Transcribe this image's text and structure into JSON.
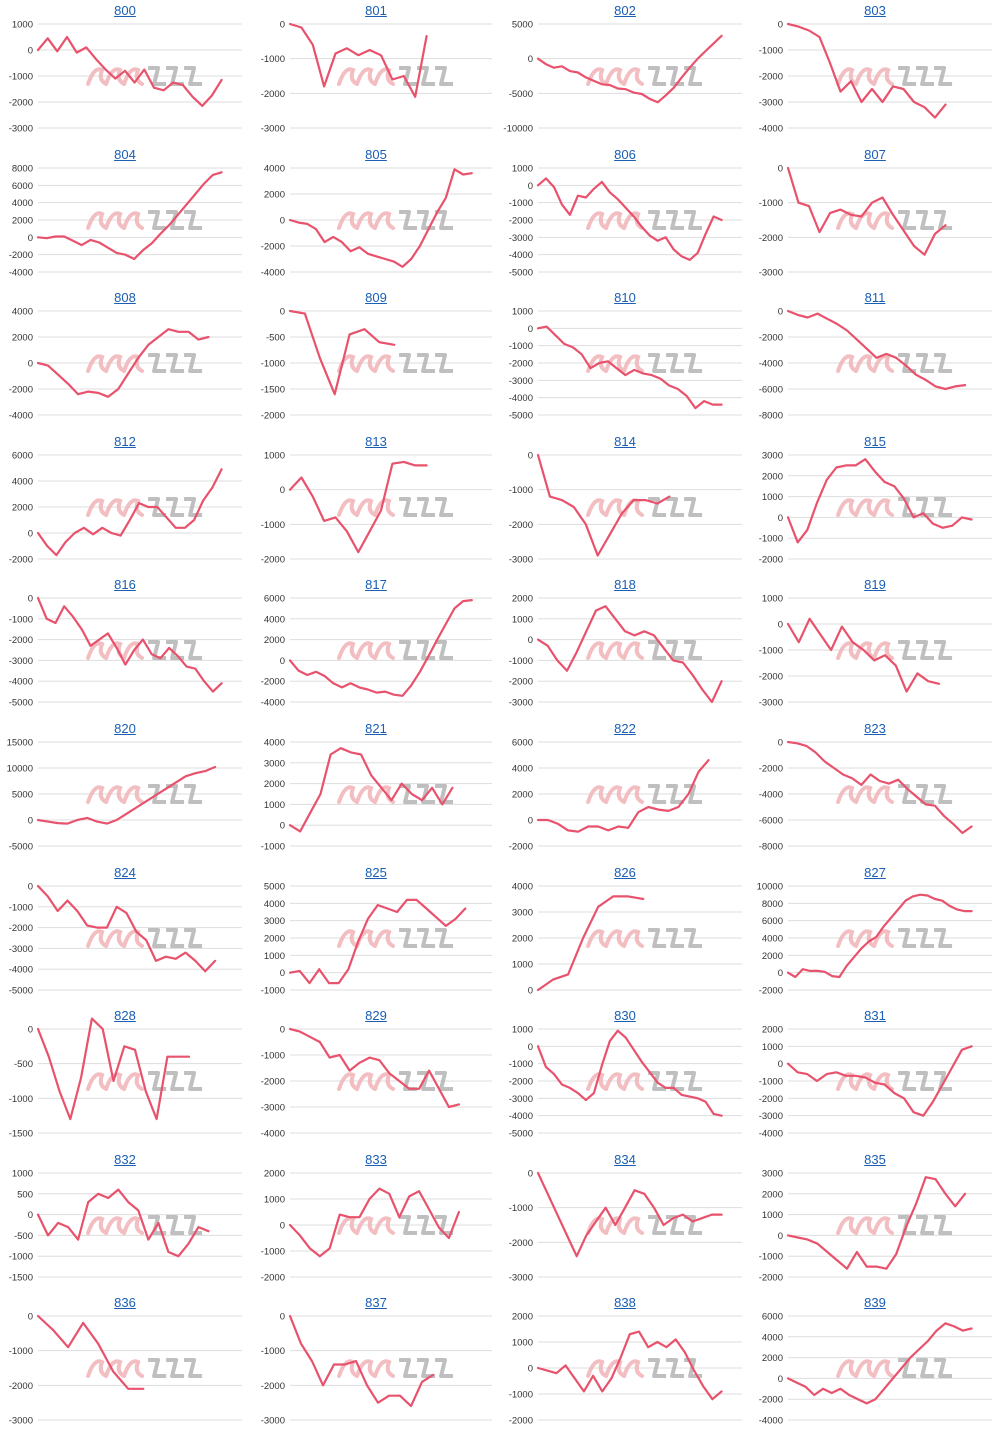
{
  "style": {
    "line_color": "#e8526c",
    "grid_color": "#dddddd",
    "title_color": "#1a5fb4",
    "watermark_pink": "#f2b3b8",
    "watermark_gray": "#b5b5b5"
  },
  "watermark": {
    "logo": "みんレポ"
  },
  "chart_data": [
    {
      "type": "line",
      "title": "800",
      "yticks": [
        1000,
        0,
        -1000,
        -2000,
        -3000
      ],
      "values": [
        0,
        450,
        -50,
        500,
        -100,
        100,
        -350,
        -750,
        -1100,
        -800,
        -1250,
        -750,
        -1450,
        -1550,
        -1250,
        -1350,
        -1800,
        -2150,
        -1750,
        -1150
      ]
    },
    {
      "type": "line",
      "title": "801",
      "yticks": [
        0,
        -1000,
        -2000,
        -3000
      ],
      "values": [
        0,
        -100,
        -600,
        -1800,
        -850,
        -700,
        -900,
        -750,
        -900,
        -1600,
        -1500,
        -2100,
        -350
      ]
    },
    {
      "type": "line",
      "title": "802",
      "yticks": [
        5000,
        0,
        -5000,
        -10000
      ],
      "values": [
        0,
        -800,
        -1300,
        -1100,
        -1800,
        -2000,
        -2700,
        -3200,
        -3700,
        -3800,
        -4300,
        -4400,
        -4900,
        -5100,
        -5800,
        -6300,
        -5300,
        -4200,
        -2700,
        -1300,
        0,
        1100,
        2200,
        3300
      ]
    },
    {
      "type": "line",
      "title": "803",
      "yticks": [
        0,
        -1000,
        -2000,
        -3000,
        -4000
      ],
      "values": [
        0,
        -100,
        -250,
        -500,
        -1500,
        -2600,
        -2200,
        -3000,
        -2500,
        -3000,
        -2400,
        -2500,
        -3000,
        -3200,
        -3600,
        -3100
      ]
    },
    {
      "type": "line",
      "title": "804",
      "yticks": [
        8000,
        6000,
        4000,
        2000,
        0,
        -2000,
        -4000
      ],
      "values": [
        0,
        -100,
        100,
        100,
        -400,
        -900,
        -300,
        -600,
        -1200,
        -1800,
        -2000,
        -2500,
        -1500,
        -700,
        400,
        1400,
        2600,
        3800,
        5000,
        6200,
        7200,
        7500
      ]
    },
    {
      "type": "line",
      "title": "805",
      "yticks": [
        4000,
        2000,
        0,
        -2000,
        -4000
      ],
      "values": [
        0,
        -200,
        -300,
        -700,
        -1700,
        -1300,
        -1700,
        -2400,
        -2100,
        -2600,
        -2800,
        -3000,
        -3200,
        -3600,
        -3000,
        -2000,
        -700,
        600,
        1700,
        3900,
        3500,
        3600
      ]
    },
    {
      "type": "line",
      "title": "806",
      "yticks": [
        1000,
        0,
        -1000,
        -2000,
        -3000,
        -4000,
        -5000
      ],
      "values": [
        0,
        400,
        -100,
        -1100,
        -1700,
        -600,
        -700,
        -200,
        200,
        -400,
        -800,
        -1300,
        -1800,
        -2400,
        -2900,
        -3200,
        -3000,
        -3700,
        -4100,
        -4300,
        -3900,
        -2800,
        -1800,
        -2000
      ]
    },
    {
      "type": "line",
      "title": "807",
      "yticks": [
        0,
        -1000,
        -2000,
        -3000
      ],
      "values": [
        0,
        -1000,
        -1100,
        -1850,
        -1300,
        -1200,
        -1350,
        -1400,
        -1000,
        -850,
        -1350,
        -1800,
        -2250,
        -2500,
        -1900,
        -1650
      ]
    },
    {
      "type": "line",
      "title": "808",
      "yticks": [
        4000,
        2000,
        0,
        -2000,
        -4000
      ],
      "values": [
        0,
        -200,
        -900,
        -1600,
        -2400,
        -2200,
        -2300,
        -2600,
        -2000,
        -800,
        400,
        1400,
        2000,
        2600,
        2400,
        2400,
        1800,
        2000
      ]
    },
    {
      "type": "line",
      "title": "809",
      "yticks": [
        0,
        -500,
        -1000,
        -1500,
        -2000
      ],
      "values": [
        0,
        -50,
        -900,
        -1600,
        -450,
        -350,
        -600,
        -650
      ]
    },
    {
      "type": "line",
      "title": "810",
      "yticks": [
        1000,
        0,
        -1000,
        -2000,
        -3000,
        -4000,
        -5000
      ],
      "values": [
        0,
        100,
        -400,
        -900,
        -1100,
        -1500,
        -2300,
        -2000,
        -1900,
        -2300,
        -2700,
        -2400,
        -2600,
        -2700,
        -2900,
        -3300,
        -3500,
        -3900,
        -4600,
        -4200,
        -4400,
        -4400
      ]
    },
    {
      "type": "line",
      "title": "811",
      "yticks": [
        0,
        -2000,
        -4000,
        -6000,
        -8000
      ],
      "values": [
        0,
        -300,
        -500,
        -200,
        -600,
        -1000,
        -1500,
        -2200,
        -2900,
        -3600,
        -3300,
        -3600,
        -4200,
        -4900,
        -5300,
        -5800,
        -6000,
        -5800,
        -5700
      ]
    },
    {
      "type": "line",
      "title": "812",
      "yticks": [
        6000,
        4000,
        2000,
        0,
        -2000
      ],
      "values": [
        0,
        -1000,
        -1700,
        -700,
        0,
        400,
        -100,
        400,
        0,
        -200,
        1000,
        2300,
        2000,
        2000,
        1200,
        400,
        400,
        1000,
        2500,
        3500,
        4900
      ]
    },
    {
      "type": "line",
      "title": "813",
      "yticks": [
        1000,
        0,
        -1000,
        -2000
      ],
      "values": [
        0,
        350,
        -200,
        -900,
        -800,
        -1200,
        -1800,
        -1200,
        -600,
        750,
        800,
        700,
        700
      ]
    },
    {
      "type": "line",
      "title": "814",
      "yticks": [
        0,
        -1000,
        -2000,
        -3000
      ],
      "values": [
        0,
        -1200,
        -1300,
        -1500,
        -2000,
        -2900,
        -2300,
        -1700,
        -1300,
        -1300,
        -1400,
        -1200
      ]
    },
    {
      "type": "line",
      "title": "815",
      "yticks": [
        3000,
        2000,
        1000,
        0,
        -1000,
        -2000
      ],
      "values": [
        0,
        -1200,
        -600,
        700,
        1800,
        2400,
        2500,
        2500,
        2800,
        2200,
        1700,
        1500,
        900,
        0,
        200,
        -300,
        -500,
        -400,
        0,
        -100
      ]
    },
    {
      "type": "line",
      "title": "816",
      "yticks": [
        0,
        -1000,
        -2000,
        -3000,
        -4000,
        -5000
      ],
      "values": [
        0,
        -1000,
        -1200,
        -400,
        -900,
        -1500,
        -2300,
        -2000,
        -1700,
        -2400,
        -3200,
        -2500,
        -2000,
        -2700,
        -2900,
        -2400,
        -2800,
        -3300,
        -3400,
        -4000,
        -4500,
        -4100
      ]
    },
    {
      "type": "line",
      "title": "817",
      "yticks": [
        6000,
        4000,
        2000,
        0,
        -2000,
        -4000
      ],
      "values": [
        0,
        -1000,
        -1400,
        -1100,
        -1500,
        -2200,
        -2600,
        -2200,
        -2600,
        -2800,
        -3100,
        -3000,
        -3300,
        -3400,
        -2400,
        -1100,
        400,
        2000,
        3500,
        5000,
        5700,
        5800
      ]
    },
    {
      "type": "line",
      "title": "818",
      "yticks": [
        2000,
        1000,
        0,
        -1000,
        -2000,
        -3000
      ],
      "values": [
        0,
        -300,
        -1000,
        -1500,
        -600,
        400,
        1400,
        1600,
        1000,
        400,
        200,
        400,
        200,
        -400,
        -1000,
        -1100,
        -1700,
        -2400,
        -3000,
        -2000
      ]
    },
    {
      "type": "line",
      "title": "819",
      "yticks": [
        1000,
        0,
        -1000,
        -2000,
        -3000
      ],
      "values": [
        0,
        -700,
        200,
        -400,
        -1000,
        -100,
        -700,
        -1000,
        -1400,
        -1200,
        -1600,
        -2600,
        -1900,
        -2200,
        -2300
      ]
    },
    {
      "type": "line",
      "title": "820",
      "yticks": [
        15000,
        10000,
        5000,
        0,
        -5000
      ],
      "values": [
        0,
        -300,
        -600,
        -700,
        0,
        400,
        -300,
        -700,
        0,
        1200,
        2400,
        3600,
        4800,
        6000,
        7200,
        8400,
        9000,
        9400,
        10200
      ]
    },
    {
      "type": "line",
      "title": "821",
      "yticks": [
        4000,
        3000,
        2000,
        1000,
        0,
        -1000
      ],
      "values": [
        0,
        -300,
        600,
        1500,
        3400,
        3700,
        3500,
        3400,
        2400,
        1800,
        1200,
        2000,
        1500,
        1200,
        1800,
        1000,
        1800
      ]
    },
    {
      "type": "line",
      "title": "822",
      "yticks": [
        6000,
        4000,
        2000,
        0,
        -2000
      ],
      "values": [
        0,
        0,
        -300,
        -800,
        -900,
        -500,
        -500,
        -800,
        -500,
        -600,
        600,
        1000,
        800,
        700,
        1000,
        2000,
        3700,
        4600
      ]
    },
    {
      "type": "line",
      "title": "823",
      "yticks": [
        0,
        -2000,
        -4000,
        -6000,
        -8000
      ],
      "values": [
        0,
        -100,
        -300,
        -800,
        -1500,
        -2000,
        -2500,
        -2800,
        -3300,
        -2500,
        -3000,
        -3200,
        -2900,
        -3600,
        -4200,
        -4800,
        -4900,
        -5700,
        -6300,
        -7000,
        -6500
      ]
    },
    {
      "type": "line",
      "title": "824",
      "yticks": [
        0,
        -1000,
        -2000,
        -3000,
        -4000,
        -5000
      ],
      "values": [
        0,
        -500,
        -1200,
        -700,
        -1200,
        -1900,
        -2000,
        -2000,
        -1000,
        -1300,
        -2200,
        -2600,
        -3600,
        -3400,
        -3500,
        -3200,
        -3600,
        -4100,
        -3600
      ]
    },
    {
      "type": "line",
      "title": "825",
      "yticks": [
        5000,
        4000,
        3000,
        2000,
        1000,
        0,
        -1000
      ],
      "values": [
        0,
        100,
        -600,
        200,
        -600,
        -600,
        200,
        1800,
        3100,
        3900,
        3700,
        3500,
        4200,
        4200,
        3700,
        3200,
        2700,
        3100,
        3700
      ]
    },
    {
      "type": "line",
      "title": "826",
      "yticks": [
        4000,
        3000,
        2000,
        1000,
        0
      ],
      "values": [
        0,
        400,
        600,
        2000,
        3200,
        3600,
        3600,
        3500
      ]
    },
    {
      "type": "line",
      "title": "827",
      "yticks": [
        10000,
        8000,
        6000,
        4000,
        2000,
        0,
        -2000
      ],
      "values": [
        0,
        -500,
        400,
        200,
        200,
        100,
        -400,
        -500,
        800,
        1800,
        2800,
        3600,
        4100,
        5300,
        6300,
        7300,
        8300,
        8800,
        9000,
        8900,
        8500,
        8300,
        7700,
        7300,
        7100,
        7100
      ]
    },
    {
      "type": "line",
      "title": "828",
      "yticks": [
        0,
        -500,
        -1000,
        -1500
      ],
      "values": [
        0,
        -400,
        -900,
        -1300,
        -700,
        150,
        0,
        -750,
        -250,
        -300,
        -900,
        -1300,
        -400,
        -400,
        -400
      ]
    },
    {
      "type": "line",
      "title": "829",
      "yticks": [
        0,
        -1000,
        -2000,
        -3000,
        -4000
      ],
      "values": [
        0,
        -100,
        -300,
        -500,
        -1100,
        -1000,
        -1600,
        -1300,
        -1100,
        -1200,
        -1700,
        -2000,
        -2300,
        -2300,
        -1600,
        -2300,
        -3000,
        -2900
      ]
    },
    {
      "type": "line",
      "title": "830",
      "yticks": [
        1000,
        0,
        -1000,
        -2000,
        -3000,
        -4000,
        -5000
      ],
      "values": [
        0,
        -1200,
        -1600,
        -2200,
        -2400,
        -2700,
        -3100,
        -2700,
        -1100,
        300,
        900,
        500,
        -200,
        -900,
        -1500,
        -2100,
        -2400,
        -2400,
        -2800,
        -2900,
        -3000,
        -3200,
        -3900,
        -4000
      ]
    },
    {
      "type": "line",
      "title": "831",
      "yticks": [
        2000,
        1000,
        0,
        -1000,
        -2000,
        -3000,
        -4000
      ],
      "values": [
        0,
        -500,
        -600,
        -1000,
        -600,
        -500,
        -700,
        -700,
        -800,
        -1100,
        -1200,
        -1700,
        -2000,
        -2800,
        -3000,
        -2200,
        -1200,
        -200,
        800,
        1000
      ]
    },
    {
      "type": "line",
      "title": "832",
      "yticks": [
        1000,
        500,
        0,
        -500,
        -1000,
        -1500
      ],
      "values": [
        0,
        -500,
        -200,
        -300,
        -600,
        300,
        500,
        400,
        600,
        300,
        100,
        -600,
        -200,
        -900,
        -1000,
        -700,
        -300,
        -400
      ]
    },
    {
      "type": "line",
      "title": "833",
      "yticks": [
        2000,
        1000,
        0,
        -1000,
        -2000
      ],
      "values": [
        0,
        -400,
        -900,
        -1200,
        -900,
        400,
        300,
        300,
        1000,
        1400,
        1200,
        300,
        1100,
        1300,
        600,
        -100,
        -500,
        500
      ]
    },
    {
      "type": "line",
      "title": "834",
      "yticks": [
        0,
        -1000,
        -2000,
        -3000
      ],
      "values": [
        0,
        -600,
        -1200,
        -1800,
        -2400,
        -1800,
        -1400,
        -1000,
        -1500,
        -1000,
        -500,
        -600,
        -1000,
        -1500,
        -1300,
        -1200,
        -1400,
        -1300,
        -1200,
        -1200
      ]
    },
    {
      "type": "line",
      "title": "835",
      "yticks": [
        3000,
        2000,
        1000,
        0,
        -1000,
        -2000
      ],
      "values": [
        0,
        -100,
        -200,
        -400,
        -800,
        -1200,
        -1600,
        -800,
        -1500,
        -1500,
        -1600,
        -900,
        400,
        1500,
        2800,
        2700,
        2000,
        1400,
        2000
      ]
    },
    {
      "type": "line",
      "title": "836",
      "yticks": [
        0,
        -1000,
        -2000,
        -3000
      ],
      "values": [
        0,
        -400,
        -900,
        -200,
        -800,
        -1600,
        -2100,
        -2100
      ]
    },
    {
      "type": "line",
      "title": "837",
      "yticks": [
        0,
        -1000,
        -2000,
        -3000
      ],
      "values": [
        0,
        -800,
        -1300,
        -2000,
        -1400,
        -1400,
        -1300,
        -2000,
        -2500,
        -2300,
        -2300,
        -2600,
        -1900,
        -1700
      ]
    },
    {
      "type": "line",
      "title": "838",
      "yticks": [
        2000,
        1000,
        0,
        -1000,
        -2000
      ],
      "values": [
        0,
        -100,
        -200,
        100,
        -400,
        -900,
        -300,
        -900,
        -400,
        400,
        1300,
        1400,
        800,
        1000,
        800,
        1100,
        600,
        -100,
        -700,
        -1200,
        -900
      ]
    },
    {
      "type": "line",
      "title": "839",
      "yticks": [
        6000,
        4000,
        2000,
        0,
        -2000,
        -4000
      ],
      "values": [
        0,
        -400,
        -800,
        -1600,
        -1000,
        -1400,
        -1000,
        -1600,
        -2000,
        -2400,
        -2000,
        -1000,
        0,
        1000,
        2000,
        2800,
        3600,
        4600,
        5300,
        5000,
        4600,
        4800
      ]
    }
  ]
}
